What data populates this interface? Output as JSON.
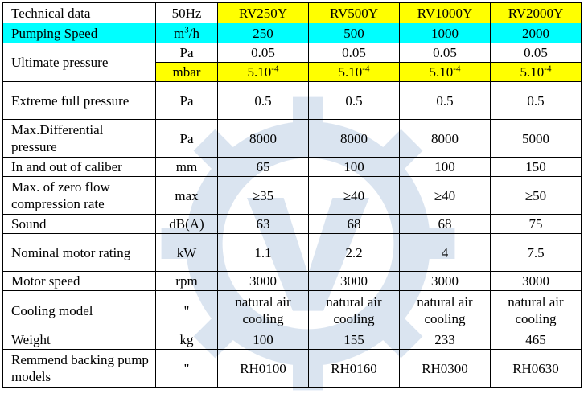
{
  "header": {
    "label": "Technical data",
    "unit": "50Hz",
    "models": [
      "RV250Y",
      "RV500Y",
      "RV1000Y",
      "RV2000Y"
    ]
  },
  "pumping": {
    "label": "Pumping Speed",
    "unit_base": "m",
    "unit_sup": "3",
    "unit_tail": "/h",
    "values": [
      "250",
      "500",
      "1000",
      "2000"
    ]
  },
  "ultimate": {
    "label": "Ultimate pressure",
    "pa": {
      "unit": "Pa",
      "values": [
        "0.05",
        "0.05",
        "0.05",
        "0.05"
      ]
    },
    "mbar": {
      "unit": "mbar",
      "base": "5.10",
      "sup": "-4"
    }
  },
  "extreme": {
    "label": "Extreme full pressure",
    "unit": "Pa",
    "values": [
      "0.5",
      "0.5",
      "0.5",
      "0.5"
    ]
  },
  "maxdiff": {
    "label": "Max.Differential pressure",
    "unit": "Pa",
    "values": [
      "8000",
      "8000",
      "8000",
      "5000"
    ]
  },
  "caliber": {
    "label": "In and out of caliber",
    "unit": "mm",
    "values": [
      "65",
      "100",
      "100",
      "150"
    ]
  },
  "compression": {
    "label": "Max. of zero flow compression rate",
    "unit": "max",
    "values": [
      "≥35",
      "≥40",
      "≥40",
      "≥50"
    ]
  },
  "sound": {
    "label": "Sound",
    "unit": "dB(A)",
    "values": [
      "63",
      "68",
      "68",
      "75"
    ]
  },
  "motor": {
    "label": "Nominal motor rating",
    "unit": "kW",
    "values": [
      "1.1",
      "2.2",
      "4",
      "7.5"
    ]
  },
  "speed": {
    "label": "Motor speed",
    "unit": "rpm",
    "values": [
      "3000",
      "3000",
      "3000",
      "3000"
    ]
  },
  "cooling": {
    "label": "Cooling model",
    "unit": "\"",
    "values": [
      "natural air cooling",
      "natural air cooling",
      "natural air cooling",
      "natural air cooling"
    ]
  },
  "weight": {
    "label": "Weight",
    "unit": "kg",
    "values": [
      "100",
      "155",
      "233",
      "465"
    ]
  },
  "backing": {
    "label": "Remmend backing pump models",
    "unit": "\"",
    "values": [
      "RH0100",
      "RH0160",
      "RH0300",
      "RH0630"
    ]
  },
  "colors": {
    "yellow": "#ffff00",
    "cyan": "#00ffff",
    "watermark": "#3a6fb0"
  }
}
